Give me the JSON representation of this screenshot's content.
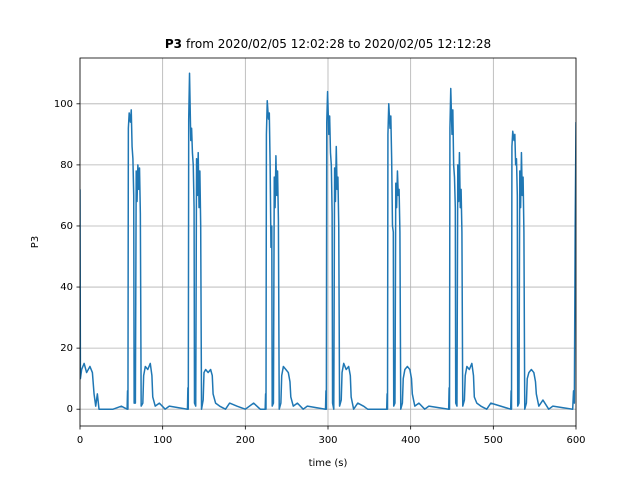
{
  "chart_data": {
    "type": "line",
    "title_bold": "P3",
    "title": "from 2020/02/05 12:02:28 to 2020/02/05 12:12:28",
    "x_label": "time (s)",
    "y_label": "P3",
    "color": "#1f77b4",
    "grid": true,
    "xlim": [
      0,
      600
    ],
    "ylim": [
      -5.5,
      115
    ],
    "xticks": [
      0,
      100,
      200,
      300,
      400,
      500,
      600
    ],
    "yticks": [
      0,
      20,
      40,
      60,
      80,
      100
    ],
    "x": [
      0,
      0.5,
      2,
      5,
      8,
      12,
      15,
      17,
      19,
      21,
      23,
      30,
      40,
      50,
      57,
      57.5,
      58,
      58.5,
      59.5,
      61,
      62,
      63,
      64,
      65,
      65.5,
      67,
      68,
      69,
      70,
      71,
      72,
      73,
      74,
      76,
      77,
      79,
      82,
      85,
      87,
      88,
      91,
      96,
      103,
      108,
      130,
      130.5,
      131,
      131.5,
      132.5,
      134,
      135,
      136,
      137,
      138,
      138.5,
      140,
      141,
      142,
      143,
      144,
      145,
      146,
      147,
      149,
      150,
      152,
      155,
      158,
      160,
      161,
      164,
      169,
      176,
      181,
      190,
      200,
      210,
      218,
      224,
      224.5,
      225,
      225.5,
      226.5,
      228,
      229,
      230,
      231,
      232,
      232.5,
      234,
      235,
      236,
      237,
      238,
      239,
      240,
      241,
      243,
      244,
      246,
      249,
      252,
      254,
      255,
      258,
      263,
      270,
      275,
      297,
      297.5,
      298,
      298.5,
      299.5,
      301,
      302,
      303,
      304,
      305,
      305.5,
      307,
      308,
      309,
      310,
      311,
      312,
      313,
      314,
      316,
      317,
      319,
      322,
      325,
      327,
      328,
      331,
      336,
      343,
      348,
      371,
      371.5,
      372,
      372.5,
      373.5,
      375,
      376,
      377,
      378,
      379,
      379.5,
      381,
      382,
      383,
      384,
      385,
      386,
      387,
      388,
      390,
      391,
      393,
      396,
      399,
      401,
      402,
      405,
      410,
      417,
      422,
      446,
      446.5,
      447,
      447.5,
      448.5,
      450,
      451,
      452,
      453,
      454,
      454.5,
      456,
      457,
      458,
      459,
      460,
      461,
      462,
      463,
      465,
      466,
      468,
      471,
      474,
      476,
      477,
      480,
      485,
      492,
      497,
      521,
      521.5,
      522,
      522.5,
      523.5,
      525,
      526,
      527,
      528,
      529,
      529.5,
      531,
      532,
      533,
      534,
      535,
      536,
      537,
      538,
      540,
      541,
      543,
      546,
      549,
      551,
      552,
      555,
      560,
      567,
      572,
      596,
      597,
      598,
      599,
      600
    ],
    "values": [
      72,
      10,
      13,
      15,
      12,
      14,
      12,
      5,
      1,
      5,
      0,
      0,
      0,
      1,
      0,
      6,
      0,
      92,
      97,
      94,
      98,
      86,
      82,
      70,
      2,
      2,
      78,
      68,
      80,
      72,
      79,
      64,
      1,
      2,
      11,
      14,
      13,
      15,
      11,
      4,
      1,
      2,
      0,
      1,
      0,
      7,
      0,
      95,
      110,
      88,
      92,
      84,
      80,
      66,
      2,
      1,
      82,
      70,
      84,
      66,
      78,
      60,
      0,
      3,
      12,
      13,
      12,
      13,
      11,
      5,
      2,
      1,
      0,
      2,
      1,
      0,
      2,
      0,
      0,
      5,
      0,
      90,
      101,
      95,
      97,
      80,
      53,
      60,
      1,
      2,
      76,
      66,
      83,
      70,
      78,
      62,
      0,
      2,
      11,
      14,
      13,
      12,
      9,
      4,
      1,
      2,
      0,
      1,
      0,
      6,
      0,
      94,
      104,
      90,
      96,
      84,
      80,
      64,
      2,
      0,
      79,
      68,
      86,
      72,
      76,
      60,
      1,
      3,
      12,
      15,
      13,
      14,
      11,
      4,
      0,
      2,
      1,
      0,
      0,
      5,
      0,
      90,
      100,
      92,
      96,
      82,
      60,
      58,
      1,
      2,
      74,
      66,
      78,
      70,
      72,
      58,
      0,
      2,
      10,
      13,
      14,
      13,
      10,
      5,
      1,
      2,
      0,
      1,
      0,
      7,
      0,
      92,
      105,
      90,
      98,
      80,
      76,
      66,
      2,
      1,
      80,
      68,
      84,
      66,
      72,
      58,
      1,
      3,
      11,
      14,
      13,
      15,
      11,
      4,
      2,
      1,
      0,
      2,
      0,
      6,
      0,
      86,
      91,
      88,
      90,
      80,
      82,
      70,
      1,
      2,
      78,
      66,
      84,
      70,
      76,
      58,
      0,
      2,
      10,
      12,
      13,
      12,
      9,
      5,
      1,
      3,
      0,
      1,
      0,
      6,
      2,
      60,
      94
    ]
  }
}
